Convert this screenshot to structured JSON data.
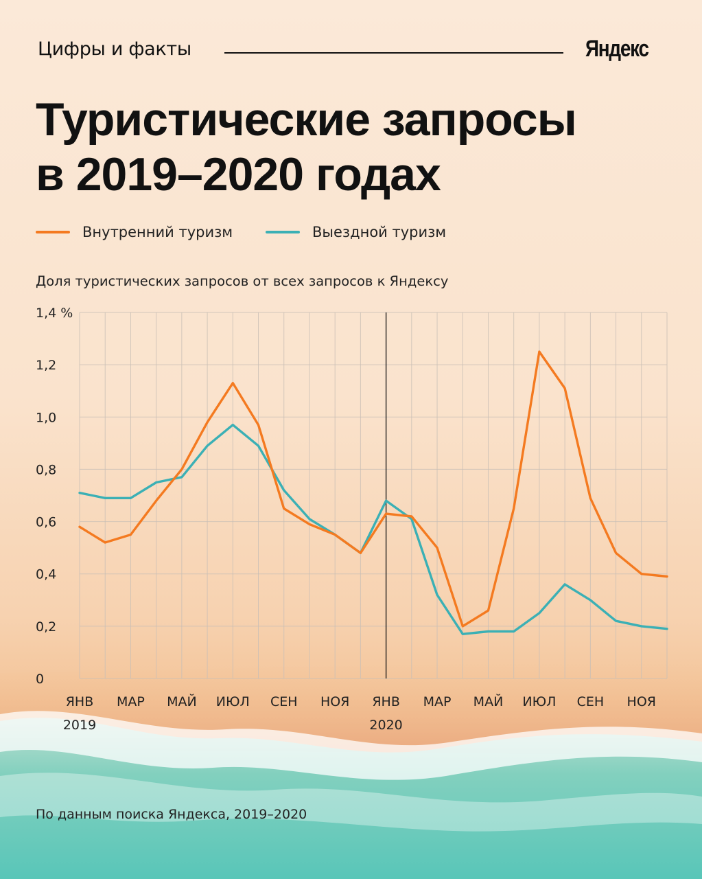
{
  "header": {
    "section_label": "Цифры и факты",
    "logo": "Яндекс"
  },
  "title_lines": [
    "Туристические запросы",
    "в 2019–2020 годах"
  ],
  "legend": [
    {
      "label": "Внутренний туризм",
      "color": "#f47a20"
    },
    {
      "label": "Выездной туризм",
      "color": "#3bb0b5"
    }
  ],
  "chart_subtitle": "Доля туристических запросов от всех запросов к Яндексу",
  "source": "По данным поиска Яндекса, 2019–2020",
  "chart_data": {
    "type": "line",
    "title": "Туристические запросы в 2019–2020 годах",
    "ylabel": "Доля туристических запросов от всех запросов к Яндексу",
    "ylim": [
      0,
      1.4
    ],
    "y_ticks": [
      {
        "value": 0,
        "label": "0"
      },
      {
        "value": 0.2,
        "label": "0,2"
      },
      {
        "value": 0.4,
        "label": "0,4"
      },
      {
        "value": 0.6,
        "label": "0,6"
      },
      {
        "value": 0.8,
        "label": "0,8"
      },
      {
        "value": 1.0,
        "label": "1,0"
      },
      {
        "value": 1.2,
        "label": "1,2"
      },
      {
        "value": 1.4,
        "label": "1,4 %"
      }
    ],
    "x": [
      "2019-01",
      "2019-02",
      "2019-03",
      "2019-04",
      "2019-05",
      "2019-06",
      "2019-07",
      "2019-08",
      "2019-09",
      "2019-10",
      "2019-11",
      "2019-12",
      "2020-01",
      "2020-02",
      "2020-03",
      "2020-04",
      "2020-05",
      "2020-06",
      "2020-07",
      "2020-08",
      "2020-09",
      "2020-10",
      "2020-11",
      "2020-12"
    ],
    "x_tick_labels": [
      {
        "index": 0,
        "label": "ЯНВ"
      },
      {
        "index": 2,
        "label": "МАР"
      },
      {
        "index": 4,
        "label": "МАЙ"
      },
      {
        "index": 6,
        "label": "ИЮЛ"
      },
      {
        "index": 8,
        "label": "СЕН"
      },
      {
        "index": 10,
        "label": "НОЯ"
      },
      {
        "index": 12,
        "label": "ЯНВ"
      },
      {
        "index": 14,
        "label": "МАР"
      },
      {
        "index": 16,
        "label": "МАЙ"
      },
      {
        "index": 18,
        "label": "ИЮЛ"
      },
      {
        "index": 20,
        "label": "СЕН"
      },
      {
        "index": 22,
        "label": "НОЯ"
      }
    ],
    "year_labels": [
      {
        "index": 0,
        "label": "2019"
      },
      {
        "index": 12,
        "label": "2020"
      }
    ],
    "year_divider_index": 12,
    "series": [
      {
        "name": "Внутренний туризм",
        "color": "#f47a20",
        "values": [
          0.58,
          0.52,
          0.55,
          0.68,
          0.8,
          0.98,
          1.13,
          0.97,
          0.65,
          0.59,
          0.55,
          0.48,
          0.63,
          0.62,
          0.5,
          0.2,
          0.26,
          0.65,
          1.25,
          1.11,
          0.69,
          0.48,
          0.4,
          0.39
        ]
      },
      {
        "name": "Выездной туризм",
        "color": "#3bb0b5",
        "values": [
          0.71,
          0.69,
          0.69,
          0.75,
          0.77,
          0.89,
          0.97,
          0.89,
          0.72,
          0.61,
          0.55,
          0.48,
          0.68,
          0.61,
          0.32,
          0.17,
          0.18,
          0.18,
          0.25,
          0.36,
          0.3,
          0.22,
          0.2,
          0.19
        ]
      }
    ]
  }
}
